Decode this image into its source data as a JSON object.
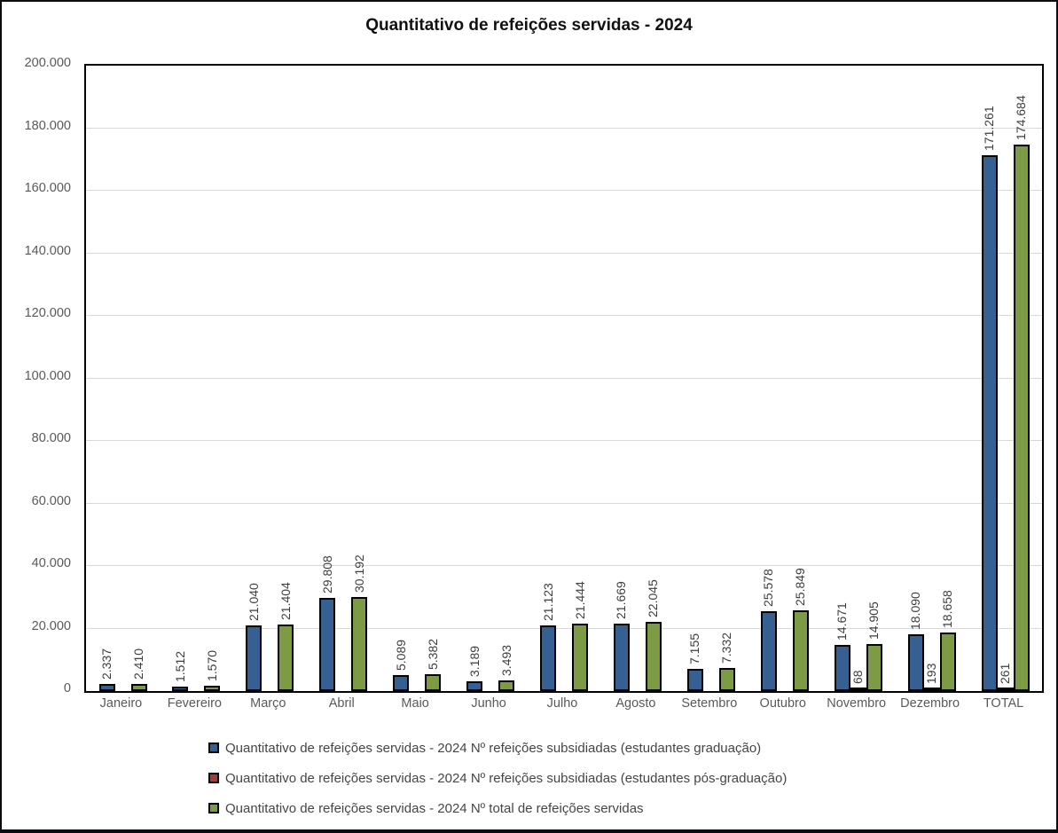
{
  "chart_data": {
    "type": "bar",
    "title": "Quantitativo de refeições servidas - 2024",
    "categories": [
      "Janeiro",
      "Fevereiro",
      "Março",
      "Abril",
      "Maio",
      "Junho",
      "Julho",
      "Agosto",
      "Setembro",
      "Outubro",
      "Novembro",
      "Dezembro",
      "TOTAL"
    ],
    "series": [
      {
        "name": "Quantitativo de refeições servidas - 2024 Nº refeições subsidiadas (estudantes graduação)",
        "color": "#366092",
        "values": [
          2337,
          1512,
          21040,
          29808,
          5089,
          3189,
          21123,
          21669,
          7155,
          25578,
          14671,
          18090,
          171261
        ],
        "labels": [
          "2.337",
          "1.512",
          "21.040",
          "29.808",
          "5.089",
          "3.189",
          "21.123",
          "21.669",
          "7.155",
          "25.578",
          "14.671",
          "18.090",
          "171.261"
        ]
      },
      {
        "name": "Quantitativo de refeições servidas - 2024 Nº refeições subsidiadas (estudantes pós-graduação)",
        "color": "#9e3d3a",
        "values": [
          0,
          0,
          0,
          0,
          0,
          0,
          0,
          0,
          0,
          0,
          68,
          193,
          261
        ],
        "labels": [
          "",
          "",
          "",
          "",
          "",
          "",
          "",
          "",
          "",
          "",
          "68",
          "193",
          "261"
        ]
      },
      {
        "name": "Quantitativo de refeições servidas - 2024 Nº total de refeições servidas",
        "color": "#7d9b44",
        "values": [
          2410,
          1570,
          21404,
          30192,
          5382,
          3493,
          21444,
          22045,
          7332,
          25849,
          14905,
          18658,
          174684
        ],
        "labels": [
          "2.410",
          "1.570",
          "21.404",
          "30.192",
          "5.382",
          "3.493",
          "21.444",
          "22.045",
          "7.332",
          "25.849",
          "14.905",
          "18.658",
          "174.684"
        ]
      }
    ],
    "ylim": [
      0,
      200000
    ],
    "ytick_step": 20000,
    "ytick_labels": [
      "0",
      "20.000",
      "40.000",
      "60.000",
      "80.000",
      "100.000",
      "120.000",
      "140.000",
      "160.000",
      "180.000",
      "200.000"
    ],
    "grid": true,
    "legend_position": "bottom",
    "colors": {
      "grid_line": "#d9d9d9",
      "axis_text": "#595959",
      "bar_border": "#000000",
      "data_label_text": "#3d3d3d",
      "chart_border": "#0b0b12"
    }
  }
}
